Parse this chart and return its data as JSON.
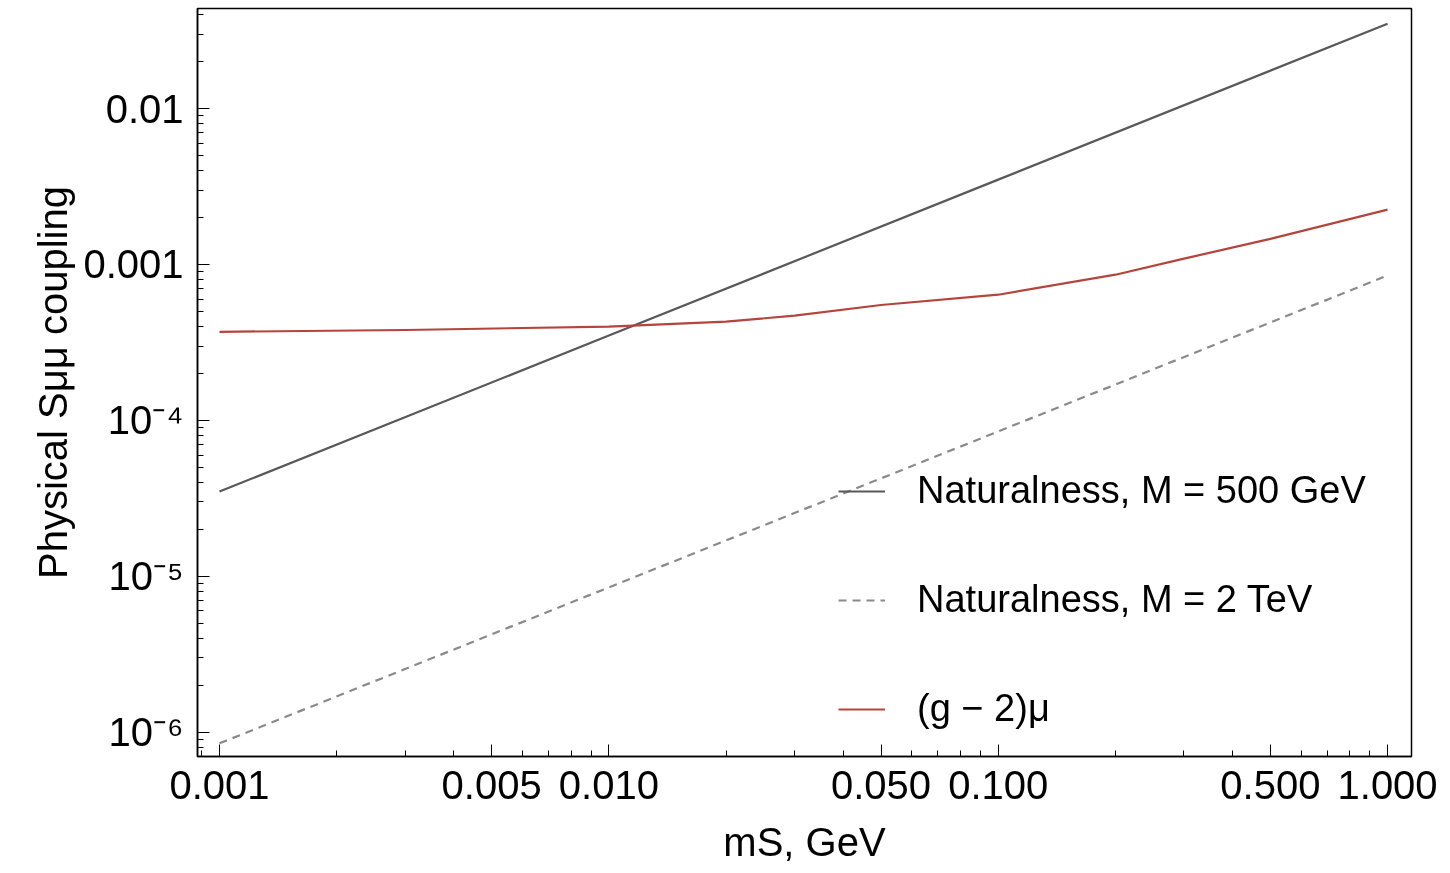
{
  "chart_data": {
    "type": "line",
    "log": "xy",
    "xlabel": "mS, GeV",
    "ylabel": "Physical Sμμ coupling",
    "xlim": [
      0.000878,
      1.152
    ],
    "ylim": [
      7e-07,
      0.0438
    ],
    "xticks": [
      0.001,
      0.005,
      {
        "value": 0.01,
        "label": "0.010"
      },
      {
        "value": 0.05,
        "label": "0.050"
      },
      {
        "value": 0.1,
        "label": "0.100"
      },
      {
        "value": 0.5,
        "label": "0.500"
      },
      {
        "value": 1,
        "label": "1.000"
      }
    ],
    "yticks": [
      {
        "value": 1e-06,
        "label": "10⁻⁶"
      },
      {
        "value": 1e-05,
        "label": "10⁻⁵"
      },
      {
        "value": 0.0001,
        "label": "10⁻⁴"
      },
      0.001,
      0.01
    ],
    "legend": "bottom right",
    "series": [
      {
        "name": "Naturalness, M = 500 GeV",
        "color": "#595959",
        "line_style": "solid",
        "x": [
          0.001,
          0.01,
          0.1,
          1
        ],
        "values": [
          3.5e-05,
          0.00035,
          0.0035,
          0.035
        ]
      },
      {
        "name": "Naturalness, M = 2 TeV",
        "color": "#8a8a8a",
        "line_style": "dashed",
        "x": [
          0.001,
          0.01,
          0.1,
          1
        ],
        "values": [
          8.5e-07,
          8.5e-06,
          8.5e-05,
          0.00085
        ]
      },
      {
        "name": "(g − 2)μ",
        "color": "#b5443c",
        "line_style": "solid",
        "x": [
          0.001,
          0.003,
          0.01,
          0.02,
          0.03,
          0.05,
          0.1,
          0.2,
          0.3,
          0.5,
          1
        ],
        "values": [
          0.00037,
          0.00038,
          0.0004,
          0.00043,
          0.00047,
          0.00055,
          0.00064,
          0.00086,
          0.00109,
          0.00146,
          0.00225
        ]
      }
    ]
  }
}
